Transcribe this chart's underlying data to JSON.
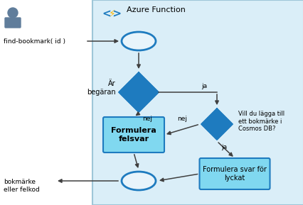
{
  "bg_color": "#ffffff",
  "azure_bg_color": "#daeef8",
  "border_color": "#9ec6d8",
  "title": "Azure Function",
  "box_fill": "#80d8f0",
  "box_edge": "#1e7bbf",
  "diamond_fill": "#1e7bbf",
  "oval_fill": "#e8f4fb",
  "oval_edge": "#1e7bbf",
  "arrow_color": "#404040",
  "text_color": "#000000",
  "label_find": "find-bookmark( id )",
  "label_bokmarke": "bokmärke\neller felkod",
  "diamond1_label": "Är\nbegäran",
  "diamond2_label": "Vill du lägga till\nett bokmärke i\nCosmos DB?",
  "box1_label": "Formulera\nfelsvar",
  "box2_label": "Formulera svar för\nlyckat",
  "label_nej1": "nej",
  "label_ja1": "ja",
  "label_nej2": "nej",
  "label_ja2": "ja"
}
